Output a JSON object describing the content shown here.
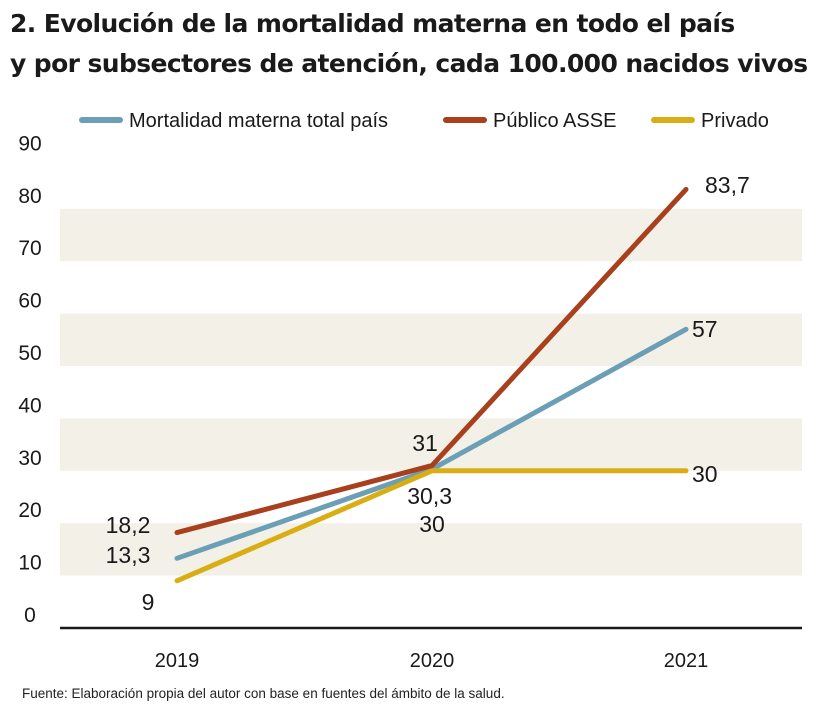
{
  "header": {
    "title_line1": "2. Evolución de la mortalidad materna en todo el país",
    "title_line2": "y por subsectores de atención, cada 100.000 nacidos vivos"
  },
  "source": "Fuente: Elaboración propia del autor con base en fuentes del ámbito de la salud.",
  "chart_data": {
    "type": "line",
    "title": "2. Evolución de la mortalidad materna en todo el país y por subsectores de atención, cada 100.000 nacidos vivos",
    "xlabel": "",
    "ylabel": "",
    "categories": [
      "2019",
      "2020",
      "2021"
    ],
    "ylim": [
      0,
      90
    ],
    "yticks": [
      "0",
      "10",
      "20",
      "30",
      "40",
      "50",
      "60",
      "70",
      "80",
      "90"
    ],
    "legend_position": "top",
    "series": [
      {
        "name": "Mortalidad materna total país",
        "color": "#6a9fb5",
        "values": [
          13.3,
          30.3,
          57
        ],
        "labels": [
          "13,3",
          "30,3",
          "57"
        ]
      },
      {
        "name": "Público ASSE",
        "color": "#a8401e",
        "values": [
          18.2,
          31,
          83.7
        ],
        "labels": [
          "18,2",
          "31",
          "83,7"
        ]
      },
      {
        "name": "Privado",
        "color": "#d9ae14",
        "values": [
          9,
          30,
          30
        ],
        "labels": [
          "9",
          "30",
          "30"
        ]
      }
    ]
  }
}
